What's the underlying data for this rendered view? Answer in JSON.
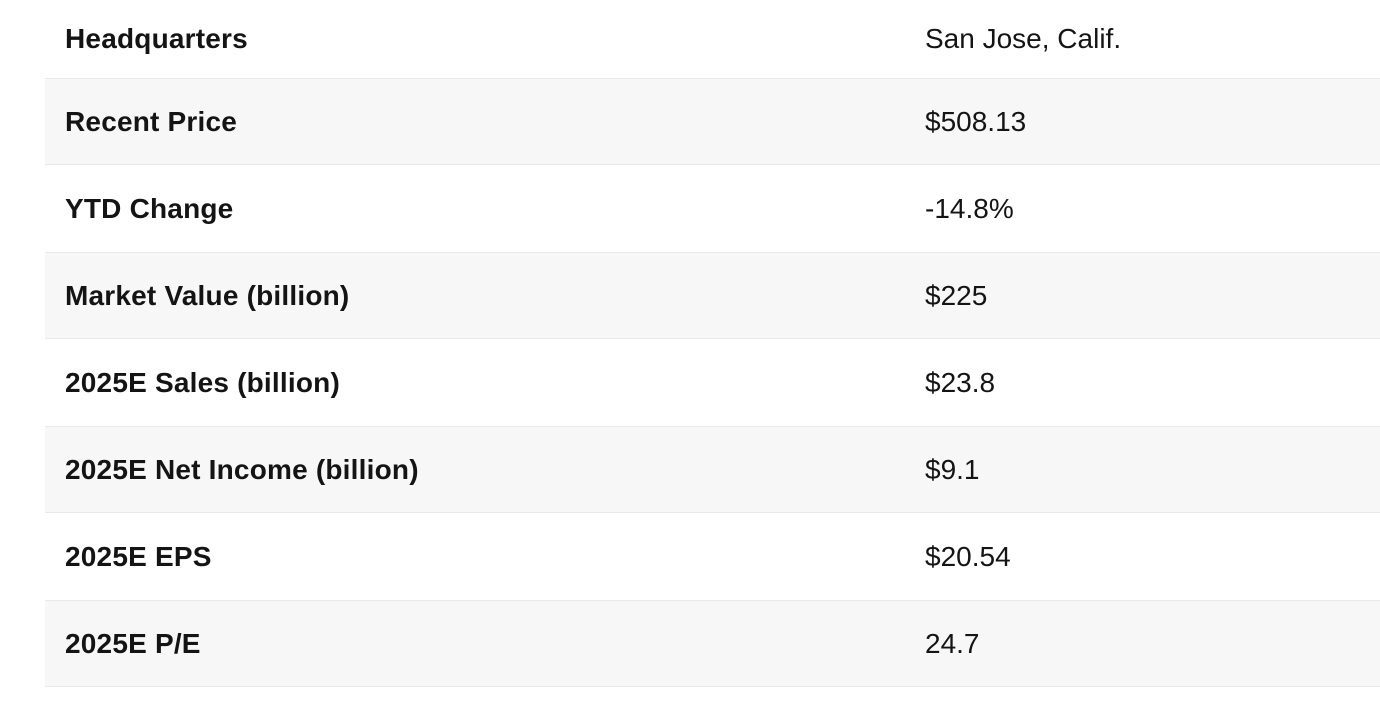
{
  "table": {
    "rows": [
      {
        "label": "Headquarters",
        "value": "San Jose, Calif."
      },
      {
        "label": "Recent Price",
        "value": "$508.13"
      },
      {
        "label": "YTD Change",
        "value": "-14.8%"
      },
      {
        "label": "Market Value (billion)",
        "value": "$225"
      },
      {
        "label": "2025E Sales (billion)",
        "value": "$23.8"
      },
      {
        "label": "2025E Net Income (billion)",
        "value": "$9.1"
      },
      {
        "label": "2025E EPS",
        "value": "$20.54"
      },
      {
        "label": "2025E P/E",
        "value": "24.7"
      }
    ]
  },
  "colors": {
    "page_bg": "#ffffff",
    "stripe_bg": "#f7f7f7",
    "row_border": "#e9e9e9",
    "text": "#141414"
  }
}
